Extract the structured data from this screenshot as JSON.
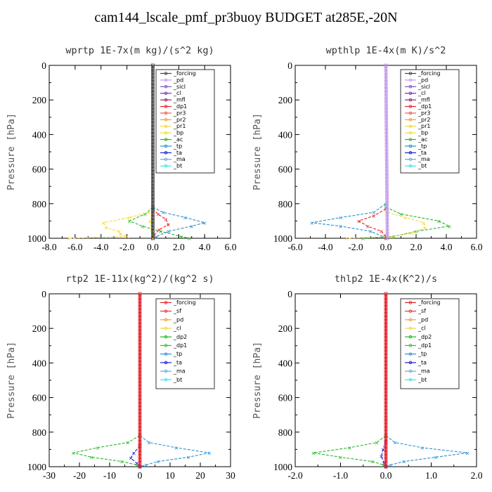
{
  "title": "cam144_lscale_pmf_pr3buoy  BUDGET at285E,-20N",
  "colors": {
    "forcing": "#444444",
    "pd": "#c49be8",
    "sicl": "#7b52c7",
    "cl": "#7a2cb0",
    "mfl": "#9b1e5a",
    "dp1": "#e8202a",
    "pr3": "#f05a5a",
    "pr2": "#f0a030",
    "pr1": "#f6d63a",
    "bp": "#f0e020",
    "ac": "#22b822",
    "tp": "#2a8fd0",
    "ta": "#1a1ad0",
    "ma": "#6aa8d8",
    "bt": "#2ee8f0",
    "sf": "#f03030",
    "dp2": "#30c030"
  },
  "chart_data": [
    {
      "type": "line",
      "title": "wprtp  1E-7x(m kg)/(s^2 kg)",
      "ylabel": "Pressure [hPa]",
      "ylim": [
        1000,
        0
      ],
      "xlim": [
        -8,
        6
      ],
      "xticks": [
        -8,
        -6,
        -4,
        -2,
        0,
        2,
        4,
        6
      ],
      "xtick_labels": [
        "-8.0",
        "-6.0",
        "-4.0",
        "-2.0",
        "0.0",
        "2.0",
        "4.0",
        "6.0"
      ],
      "yticks": [
        0,
        200,
        400,
        600,
        800,
        1000
      ],
      "legend": [
        "_forcing",
        "_pd",
        "_sicl",
        "_cl",
        "_mfl",
        "_dp1",
        "_pr3",
        "_pr2",
        "_pr1",
        "_bp",
        "_ac",
        "_tp",
        "_ta",
        "_ma",
        "_bt"
      ],
      "legend_keys": [
        "forcing",
        "pd",
        "sicl",
        "cl",
        "mfl",
        "dp1",
        "pr3",
        "pr2",
        "pr1",
        "bp",
        "ac",
        "tp",
        "ta",
        "ma",
        "bt"
      ],
      "series": [
        {
          "name": "_tp",
          "key": "tp",
          "p": [
            820,
            850,
            880,
            910,
            930,
            960,
            990,
            1000
          ],
          "x": [
            0,
            0.8,
            2.5,
            4.0,
            3.0,
            1.2,
            0.3,
            0
          ]
        },
        {
          "name": "_dp1",
          "key": "dp1",
          "p": [
            830,
            860,
            890,
            920,
            950,
            980,
            1000
          ],
          "x": [
            0,
            0.4,
            1.0,
            1.2,
            0.5,
            0.1,
            0
          ]
        },
        {
          "name": "_ac",
          "key": "ac",
          "p": [
            820,
            860,
            900,
            930,
            960,
            990,
            1000
          ],
          "x": [
            0,
            -0.6,
            -1.8,
            -0.8,
            0.6,
            2.2,
            2.8
          ]
        },
        {
          "name": "_pr1",
          "key": "pr1",
          "p": [
            850,
            880,
            910,
            940,
            960,
            975,
            990,
            1000
          ],
          "x": [
            -0.3,
            -1.8,
            -3.8,
            -3.6,
            -2.6,
            -2.5,
            -2.0,
            -6.5
          ]
        },
        {
          "name": "_bp",
          "key": "bp",
          "p": [
            850,
            900,
            950,
            1000
          ],
          "x": [
            0,
            -0.2,
            -0.1,
            0
          ]
        },
        {
          "name": "_forcing",
          "key": "forcing",
          "p": [
            0,
            1000
          ],
          "x": [
            0,
            0
          ]
        }
      ]
    },
    {
      "type": "line",
      "title": "wpthlp  1E-4x(m K)/s^2",
      "ylabel": "Pressure [hPa]",
      "ylim": [
        1000,
        0
      ],
      "xlim": [
        -6,
        6
      ],
      "xticks": [
        -6,
        -4,
        -2,
        0,
        2,
        4,
        6
      ],
      "xtick_labels": [
        "-6.0",
        "-4.0",
        "-2.0",
        "0.0",
        "2.0",
        "4.0",
        "6.0"
      ],
      "yticks": [
        0,
        200,
        400,
        600,
        800,
        1000
      ],
      "legend": [
        "_forcing",
        "_pd",
        "_sicl",
        "_cl",
        "_mfl",
        "_dp1",
        "_pr3",
        "_pr2",
        "_pr1",
        "_bp",
        "_ac",
        "_tp",
        "_ta",
        "_ma",
        "_bt"
      ],
      "legend_keys": [
        "forcing",
        "pd",
        "sicl",
        "cl",
        "mfl",
        "dp1",
        "pr3",
        "pr2",
        "pr1",
        "bp",
        "ac",
        "tp",
        "ta",
        "ma",
        "bt"
      ],
      "series": [
        {
          "name": "_tp",
          "key": "tp",
          "p": [
            800,
            850,
            880,
            910,
            930,
            960,
            990,
            1000
          ],
          "x": [
            0,
            -0.8,
            -3.0,
            -4.9,
            -3.0,
            -1.0,
            -0.2,
            0
          ]
        },
        {
          "name": "_dp1",
          "key": "dp1",
          "p": [
            830,
            870,
            900,
            930,
            960,
            990,
            1000
          ],
          "x": [
            0,
            -0.8,
            -1.8,
            -1.2,
            -0.3,
            0,
            0
          ]
        },
        {
          "name": "_ac",
          "key": "ac",
          "p": [
            820,
            860,
            900,
            930,
            960,
            990,
            1000
          ],
          "x": [
            0,
            1.0,
            3.5,
            4.2,
            2.0,
            0.5,
            -1.5
          ]
        },
        {
          "name": "_pr1",
          "key": "pr1",
          "p": [
            850,
            880,
            910,
            940,
            970,
            990,
            1000
          ],
          "x": [
            0.1,
            1.3,
            2.5,
            2.6,
            1.7,
            0.4,
            -2.6
          ]
        },
        {
          "name": "_forcing",
          "key": "pd",
          "p": [
            0,
            1000
          ],
          "x": [
            0,
            0.1
          ]
        }
      ]
    },
    {
      "type": "line",
      "title": "rtp2  1E-11x(kg^2)/(kg^2 s)",
      "ylabel": "Pressure [hPa]",
      "ylim": [
        1000,
        0
      ],
      "xlim": [
        -30,
        30
      ],
      "xticks": [
        -30,
        -20,
        -10,
        0,
        10,
        20,
        30
      ],
      "xtick_labels": [
        "-30",
        "-20",
        "-10",
        "0",
        "10",
        "20",
        "30"
      ],
      "yticks": [
        0,
        200,
        400,
        600,
        800,
        1000
      ],
      "legend": [
        "_forcing",
        "_sf",
        "_pd",
        "_cl",
        "_dp2",
        "_dp1",
        "_tp",
        "_ta",
        "_ma",
        "_bt"
      ],
      "legend_keys": [
        "dp1",
        "sf",
        "pr2",
        "pr1",
        "ac",
        "dp2",
        "tp",
        "ta",
        "ma",
        "bt"
      ],
      "series": [
        {
          "name": "_tp",
          "key": "tp",
          "p": [
            820,
            860,
            890,
            920,
            945,
            970,
            990,
            1000
          ],
          "x": [
            0,
            3,
            12,
            23,
            16,
            6,
            2,
            0
          ]
        },
        {
          "name": "_dp2",
          "key": "ac",
          "p": [
            820,
            860,
            890,
            920,
            945,
            970,
            990,
            1000
          ],
          "x": [
            0,
            -4,
            -14,
            -22,
            -16,
            -6,
            -1,
            0
          ]
        },
        {
          "name": "_ta",
          "key": "ta",
          "p": [
            880,
            920,
            950,
            980,
            1000
          ],
          "x": [
            0,
            -2,
            -3,
            -1,
            0
          ]
        },
        {
          "name": "_forcing",
          "key": "dp1",
          "p": [
            0,
            1000
          ],
          "x": [
            0,
            0
          ]
        }
      ]
    },
    {
      "type": "line",
      "title": "thlp2  1E-4x(K^2)/s",
      "ylabel": "Pressure [hPa]",
      "ylim": [
        1000,
        0
      ],
      "xlim": [
        -2,
        2
      ],
      "xticks": [
        -2,
        -1,
        0,
        1,
        2
      ],
      "xtick_labels": [
        "-2.0",
        "-1.0",
        "0.0",
        "1.0",
        "2.0"
      ],
      "yticks": [
        0,
        200,
        400,
        600,
        800,
        1000
      ],
      "legend": [
        "_forcing",
        "_sf",
        "_pd",
        "_cl",
        "_dp2",
        "_dp1",
        "_tp",
        "_ta",
        "_ma",
        "_bt"
      ],
      "legend_keys": [
        "dp1",
        "sf",
        "pr2",
        "pr1",
        "ac",
        "dp2",
        "tp",
        "ta",
        "ma",
        "bt"
      ],
      "series": [
        {
          "name": "_tp",
          "key": "tp",
          "p": [
            820,
            860,
            890,
            920,
            945,
            970,
            990,
            1000
          ],
          "x": [
            0,
            0.2,
            0.8,
            1.8,
            1.1,
            0.4,
            0.1,
            0
          ]
        },
        {
          "name": "_dp2",
          "key": "ac",
          "p": [
            820,
            860,
            890,
            920,
            945,
            970,
            990,
            1000
          ],
          "x": [
            0,
            -0.2,
            -0.8,
            -1.6,
            -1.0,
            -0.3,
            -0.05,
            0
          ]
        },
        {
          "name": "_ta",
          "key": "ta",
          "p": [
            850,
            900,
            940,
            980,
            1000
          ],
          "x": [
            0,
            -0.06,
            -0.1,
            -0.04,
            0
          ]
        },
        {
          "name": "_forcing",
          "key": "dp1",
          "p": [
            0,
            1000
          ],
          "x": [
            0,
            0
          ]
        }
      ]
    }
  ]
}
